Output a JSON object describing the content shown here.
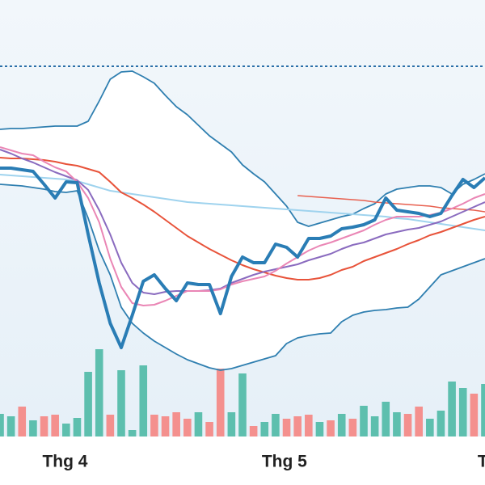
{
  "chart_data": {
    "type": "line",
    "xlim": [
      0,
      44
    ],
    "ylim": [
      0,
      540
    ],
    "y2lim": [
      0,
      540
    ],
    "xticks": [
      {
        "value": 5.9,
        "label": "Thg 4"
      },
      {
        "value": 25.8,
        "label": "Thg 5"
      },
      {
        "value": 43.8,
        "label": "T"
      }
    ],
    "x": [
      0,
      1,
      2,
      3,
      4,
      5,
      6,
      7,
      8,
      9,
      10,
      11,
      12,
      13,
      14,
      15,
      16,
      17,
      18,
      19,
      20,
      21,
      22,
      23,
      24,
      25,
      26,
      27,
      28,
      29,
      30,
      31,
      32,
      33,
      34,
      35,
      36,
      37,
      38,
      39,
      40,
      41,
      42,
      43,
      44
    ],
    "reference_line": {
      "value": 458,
      "color": "#2a6fa8"
    },
    "bands": {
      "color": "#2f7fb0",
      "upper": [
        380,
        381,
        381,
        382,
        383,
        384,
        384,
        384,
        390,
        415,
        442,
        451,
        452,
        445,
        437,
        422,
        408,
        398,
        385,
        372,
        362,
        352,
        336,
        325,
        315,
        300,
        285,
        265,
        260,
        264,
        268,
        272,
        275,
        282,
        288,
        300,
        306,
        308,
        310,
        310,
        308,
        300,
        312,
        318,
        325
      ],
      "lower": [
        312,
        311,
        310,
        308,
        306,
        303,
        302,
        304,
        270,
        230,
        200,
        160,
        140,
        128,
        118,
        110,
        102,
        95,
        90,
        85,
        82,
        84,
        88,
        92,
        96,
        100,
        115,
        122,
        125,
        127,
        128,
        142,
        150,
        154,
        156,
        157,
        159,
        160,
        170,
        185,
        200,
        205,
        210,
        215,
        220
      ]
    },
    "series": [
      {
        "color": "#9fd3ee",
        "width": 2,
        "values": [
          324,
          323,
          322,
          321,
          320,
          319,
          318,
          316,
          312,
          308,
          304,
          302,
          300,
          298,
          296,
          294,
          292,
          290,
          289,
          288,
          287,
          286,
          285,
          284,
          283,
          282,
          281,
          280,
          279,
          278,
          277,
          276,
          275,
          274,
          273,
          272,
          270,
          269,
          267,
          265,
          263,
          261,
          259,
          257,
          255
        ]
      },
      {
        "color": "#e8604f",
        "width": 1.5,
        "values": [
          null,
          null,
          null,
          null,
          null,
          null,
          null,
          null,
          null,
          null,
          null,
          null,
          null,
          null,
          null,
          null,
          null,
          null,
          null,
          null,
          null,
          null,
          null,
          null,
          null,
          null,
          null,
          298,
          297,
          296,
          295,
          294,
          293,
          292,
          290,
          289,
          288,
          287,
          286,
          285,
          283,
          282,
          281,
          280,
          278
        ]
      },
      {
        "color": "#e8533a",
        "width": 2,
        "values": [
          345,
          344,
          344,
          343,
          342,
          340,
          337,
          335,
          331,
          327,
          315,
          302,
          295,
          287,
          278,
          268,
          258,
          248,
          240,
          232,
          225,
          218,
          212,
          207,
          203,
          199,
          196,
          194,
          194,
          196,
          200,
          206,
          210,
          217,
          222,
          227,
          232,
          238,
          243,
          249,
          253,
          258,
          263,
          268,
          272
        ]
      },
      {
        "color": "#8a6bbf",
        "width": 2,
        "values": [
          355,
          350,
          344,
          339,
          333,
          327,
          322,
          317,
          305,
          280,
          250,
          215,
          190,
          178,
          176,
          179,
          180,
          180,
          180,
          181,
          183,
          190,
          195,
          200,
          204,
          207,
          210,
          213,
          218,
          222,
          226,
          232,
          237,
          240,
          245,
          250,
          253,
          256,
          258,
          262,
          266,
          272,
          278,
          284,
          290
        ]
      },
      {
        "color": "#ea86b5",
        "width": 2,
        "values": [
          358,
          354,
          350,
          348,
          340,
          333,
          328,
          315,
          295,
          265,
          220,
          185,
          165,
          162,
          163,
          168,
          174,
          180,
          180,
          180,
          182,
          188,
          192,
          195,
          198,
          205,
          214,
          222,
          230,
          236,
          240,
          245,
          250,
          255,
          262,
          268,
          272,
          272,
          272,
          274,
          277,
          282,
          288,
          295,
          300
        ]
      },
      {
        "color": "#2a7db5",
        "width": 4,
        "values": [
          332,
          332,
          330,
          328,
          312,
          295,
          315,
          314,
          250,
          190,
          140,
          110,
          150,
          192,
          200,
          183,
          168,
          190,
          188,
          188,
          152,
          198,
          222,
          215,
          215,
          238,
          234,
          222,
          245,
          245,
          248,
          257,
          259,
          262,
          268,
          295,
          280,
          278,
          276,
          272,
          276,
          298,
          318,
          308,
          320
        ]
      }
    ],
    "volume": {
      "axis": "y2",
      "values": [
        28,
        25,
        37,
        20,
        25,
        27,
        16,
        23,
        80,
        108,
        27,
        82,
        8,
        88,
        27,
        25,
        30,
        22,
        30,
        18,
        84,
        30,
        78,
        13,
        18,
        28,
        22,
        25,
        27,
        18,
        20,
        28,
        22,
        38,
        25,
        43,
        30,
        28,
        37,
        22,
        32,
        68,
        60,
        53,
        65
      ],
      "colors": [
        "#5dbfae",
        "#5dbfae",
        "#f4908e",
        "#5dbfae",
        "#f4908e",
        "#f4908e",
        "#5dbfae",
        "#5dbfae",
        "#5dbfae",
        "#5dbfae",
        "#f4908e",
        "#5dbfae",
        "#5dbfae",
        "#5dbfae",
        "#f4908e",
        "#f4908e",
        "#f4908e",
        "#f4908e",
        "#5dbfae",
        "#f4908e",
        "#f4908e",
        "#5dbfae",
        "#5dbfae",
        "#f4908e",
        "#5dbfae",
        "#5dbfae",
        "#f4908e",
        "#f4908e",
        "#f4908e",
        "#5dbfae",
        "#f4908e",
        "#5dbfae",
        "#f4908e",
        "#5dbfae",
        "#5dbfae",
        "#5dbfae",
        "#5dbfae",
        "#f4908e",
        "#f4908e",
        "#5dbfae",
        "#5dbfae",
        "#5dbfae",
        "#5dbfae",
        "#f4908e",
        "#5dbfae"
      ]
    }
  }
}
